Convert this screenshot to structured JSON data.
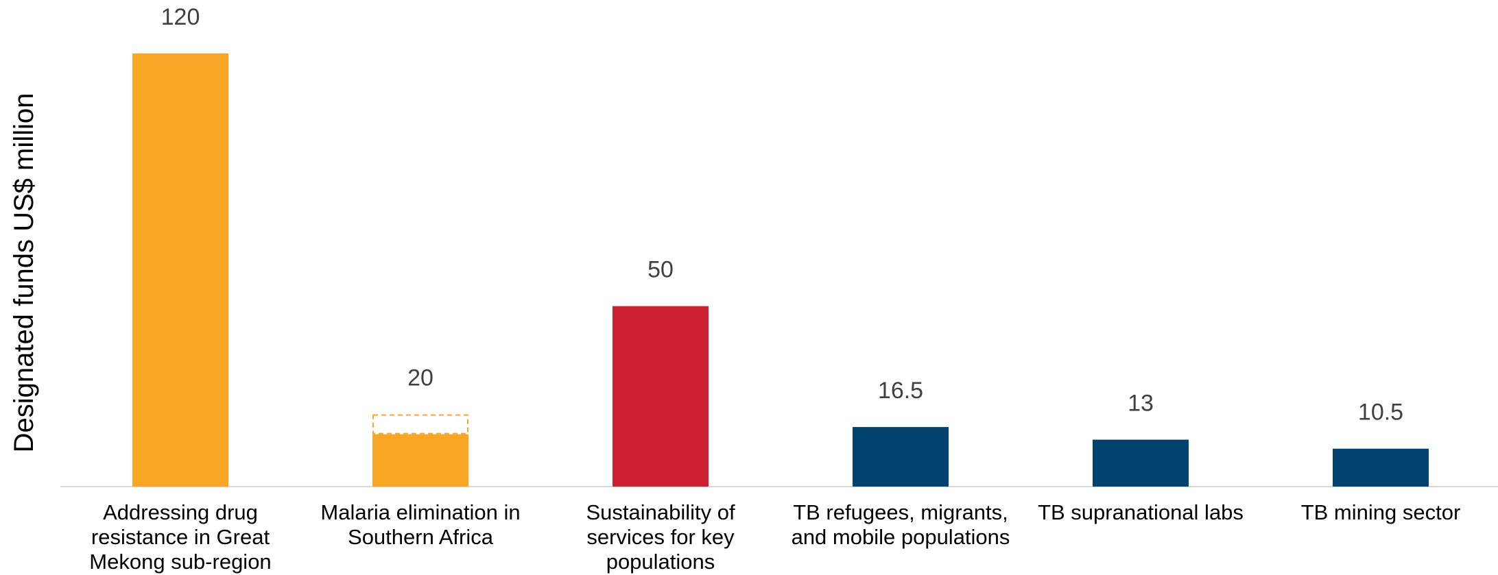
{
  "chart_data": {
    "type": "bar",
    "ylabel": "Designated funds US$ million",
    "xlabel": "",
    "ylim": [
      0,
      120
    ],
    "grid": false,
    "categories": [
      [
        "Addressing drug",
        "resistance in Great",
        "Mekong sub-region"
      ],
      [
        "Malaria elimination in",
        "Southern Africa"
      ],
      [
        "Sustainability of",
        "services for key",
        "populations"
      ],
      [
        "TB refugees, migrants,",
        "and mobile populations"
      ],
      [
        "TB supranational labs"
      ],
      [
        "TB mining sector"
      ]
    ],
    "values": [
      120,
      20,
      50,
      16.5,
      13,
      10.5
    ],
    "value_labels": [
      "120",
      "20",
      "50",
      "16.5",
      "13",
      "10.5"
    ],
    "segments_note": "",
    "malaria_partial": {
      "solid": 14.5,
      "dashed_total": 20
    },
    "colors": [
      "#FAA625",
      "#FAA625",
      "#CC1F2F",
      "#004270",
      "#004270",
      "#004270"
    ],
    "axis_color": "#D9D9D9"
  }
}
